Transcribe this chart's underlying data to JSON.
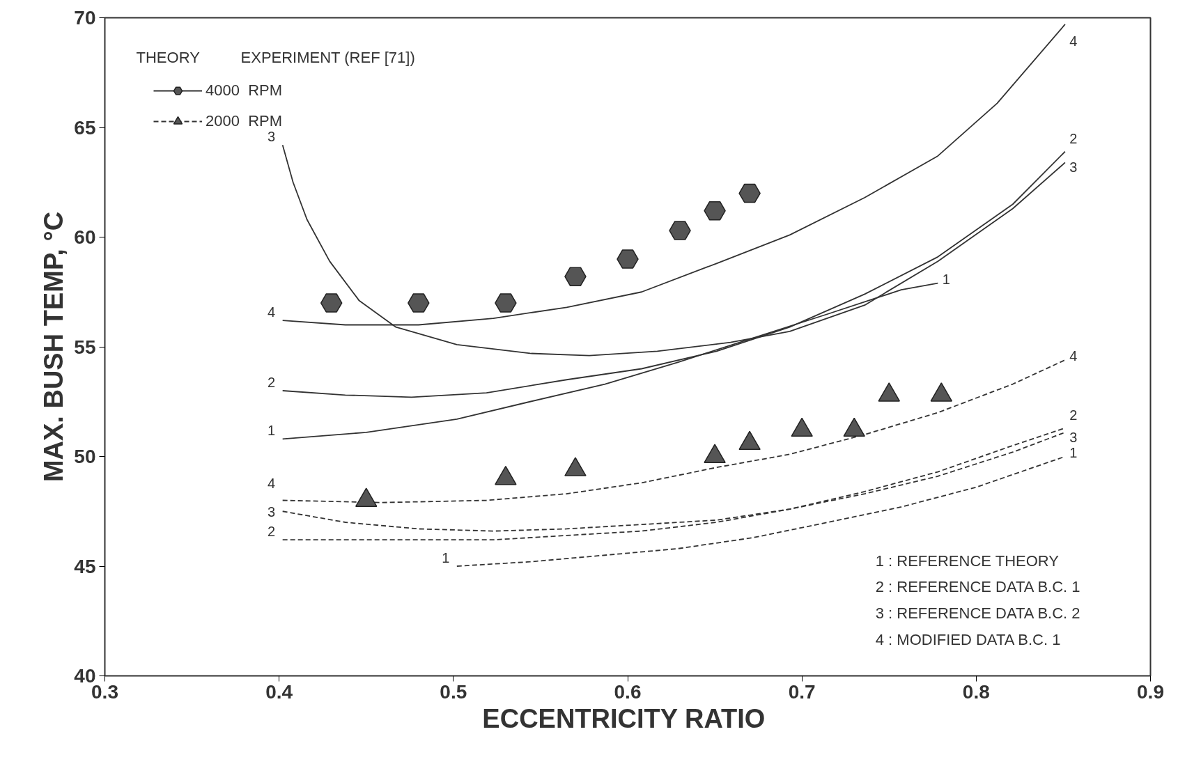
{
  "chart_data": {
    "type": "line",
    "xlabel": "ECCENTRICITY  RATIO",
    "ylabel": "MAX. BUSH TEMP, °C",
    "xlim": [
      0.3,
      0.9
    ],
    "xticks": [
      0.3,
      0.4,
      0.5,
      0.6,
      0.7,
      0.8,
      0.9
    ],
    "ylim": [
      40,
      70
    ],
    "yticks": [
      40,
      45,
      50,
      55,
      60,
      65,
      70
    ],
    "grid": false,
    "legend": "top left",
    "marker": "none",
    "annotations": [
      "THEORY",
      "EXPERIMENT (REF [71])",
      "1 :  REFERENCE THEORY",
      "2 :  REFERENCE DATA  B.C. 1",
      "3 :  REFERENCE DATA  B.C. 2",
      "4 :  MODIFIED     DATA  B.C. 1"
    ],
    "series": [
      {
        "name": "1",
        "line_style": "solid",
        "color": "#333333",
        "x": [
          0.402,
          0.45,
          0.502,
          0.544,
          0.587,
          0.629,
          0.672,
          0.715,
          0.757,
          0.778
        ],
        "values": [
          50.8,
          51.1,
          51.7,
          52.5,
          53.3,
          54.3,
          55.4,
          56.5,
          57.6,
          57.9
        ]
      },
      {
        "name": "2",
        "line_style": "solid",
        "color": "#333333",
        "x": [
          0.402,
          0.438,
          0.476,
          0.519,
          0.565,
          0.608,
          0.651,
          0.693,
          0.736,
          0.778,
          0.821,
          0.851
        ],
        "values": [
          53.0,
          52.8,
          52.7,
          52.9,
          53.5,
          54.0,
          54.8,
          55.9,
          57.4,
          59.1,
          61.5,
          63.9
        ]
      },
      {
        "name": "3",
        "line_style": "solid",
        "color": "#333333",
        "x": [
          0.402,
          0.408,
          0.416,
          0.429,
          0.446,
          0.467,
          0.502,
          0.544,
          0.578,
          0.617,
          0.659,
          0.693,
          0.736,
          0.778,
          0.821,
          0.851
        ],
        "values": [
          64.2,
          62.5,
          60.8,
          58.9,
          57.1,
          55.9,
          55.1,
          54.7,
          54.6,
          54.8,
          55.2,
          55.7,
          56.9,
          58.9,
          61.3,
          63.4
        ]
      },
      {
        "name": "4",
        "line_style": "solid",
        "color": "#333333",
        "x": [
          0.402,
          0.438,
          0.48,
          0.523,
          0.565,
          0.608,
          0.651,
          0.693,
          0.736,
          0.778,
          0.812,
          0.851
        ],
        "values": [
          56.2,
          56.0,
          56.0,
          56.3,
          56.8,
          57.5,
          58.8,
          60.1,
          61.8,
          63.7,
          66.1,
          69.7
        ]
      },
      {
        "name": "1",
        "line_style": "dashed",
        "color": "#333333",
        "x": [
          0.502,
          0.544,
          0.587,
          0.629,
          0.672,
          0.715,
          0.757,
          0.8,
          0.851
        ],
        "values": [
          45.0,
          45.2,
          45.5,
          45.8,
          46.3,
          47.0,
          47.7,
          48.6,
          50.0
        ]
      },
      {
        "name": "2",
        "line_style": "dashed",
        "color": "#333333",
        "x": [
          0.402,
          0.459,
          0.523,
          0.565,
          0.608,
          0.651,
          0.693,
          0.736,
          0.778,
          0.821,
          0.851
        ],
        "values": [
          46.2,
          46.2,
          46.2,
          46.4,
          46.6,
          47.0,
          47.6,
          48.4,
          49.3,
          50.5,
          51.3
        ]
      },
      {
        "name": "3",
        "line_style": "dashed",
        "color": "#333333",
        "x": [
          0.402,
          0.438,
          0.48,
          0.523,
          0.565,
          0.608,
          0.651,
          0.693,
          0.736,
          0.778,
          0.821,
          0.851
        ],
        "values": [
          47.5,
          47.0,
          46.7,
          46.6,
          46.7,
          46.9,
          47.1,
          47.6,
          48.3,
          49.1,
          50.2,
          51.1
        ]
      },
      {
        "name": "4",
        "line_style": "dashed",
        "color": "#333333",
        "x": [
          0.402,
          0.459,
          0.519,
          0.565,
          0.608,
          0.651,
          0.693,
          0.736,
          0.778,
          0.821,
          0.851
        ],
        "values": [
          48.0,
          47.9,
          48.0,
          48.3,
          48.8,
          49.5,
          50.1,
          51.0,
          52.0,
          53.3,
          54.4
        ]
      },
      {
        "name": "4000  RPM",
        "type": "scatter",
        "marker": "circle",
        "color": "#555555",
        "x": [
          0.43,
          0.48,
          0.53,
          0.57,
          0.6,
          0.63,
          0.65,
          0.67
        ],
        "values": [
          57.0,
          57.0,
          57.0,
          58.2,
          59.0,
          60.3,
          61.2,
          62.0
        ]
      },
      {
        "name": "2000  RPM",
        "type": "scatter",
        "marker": "triangle",
        "color": "#555555",
        "x": [
          0.45,
          0.53,
          0.57,
          0.65,
          0.67,
          0.7,
          0.73,
          0.75,
          0.78
        ],
        "values": [
          48.0,
          49.0,
          49.4,
          50.0,
          50.6,
          51.2,
          51.2,
          52.8,
          52.8
        ]
      }
    ]
  }
}
